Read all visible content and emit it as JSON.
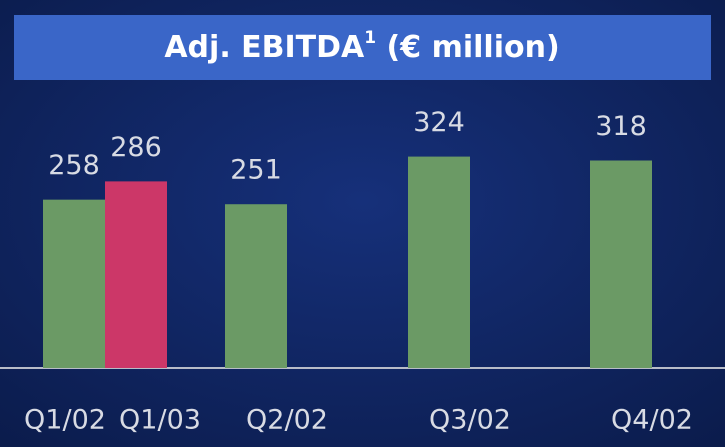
{
  "chart_data": {
    "type": "bar",
    "title": "Adj. EBITDA",
    "title_superscript": "1",
    "title_suffix": " (€ million)",
    "categories": [
      "Q1/02",
      "Q1/03",
      "Q2/02",
      "Q3/02",
      "Q4/02"
    ],
    "values": [
      258,
      286,
      251,
      324,
      318
    ],
    "colors": [
      "#6b9a65",
      "#cc3768",
      "#6b9a65",
      "#6b9a65",
      "#6b9a65"
    ],
    "ylim": [
      0,
      400
    ]
  }
}
